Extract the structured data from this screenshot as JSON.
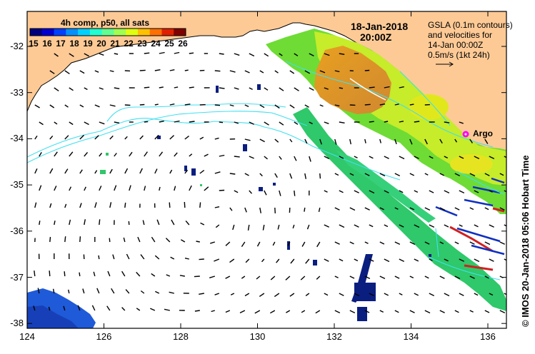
{
  "map": {
    "colorbar": {
      "title": "4h comp, p50, all sats",
      "ticks": [
        "15",
        "16",
        "17",
        "18",
        "19",
        "20",
        "21",
        "22",
        "23",
        "24",
        "25",
        "26"
      ],
      "colors": [
        "#00007f",
        "#0000d0",
        "#0040ff",
        "#0090ff",
        "#00d0ff",
        "#20ffd0",
        "#60ff90",
        "#a0ff50",
        "#e0ff10",
        "#ffc000",
        "#ff7000",
        "#e02000",
        "#800000"
      ]
    },
    "date": "18-Jan-2018",
    "time": "20:00Z",
    "legend": {
      "line1": "GSLA (0.1m contours)",
      "line2": "and velocities for",
      "line3": "14-Jan 00:00Z",
      "line4": "0.5m/s (1kt 24h)"
    },
    "argo_label": "Argo",
    "side_label": "©  IMOS 20-Jan-2018 05:06 Hobart Time",
    "y_ticks": [
      "-32",
      "-33",
      "-34",
      "-35",
      "-36",
      "-37",
      "-38"
    ],
    "x_ticks": [
      "124",
      "126",
      "128",
      "130",
      "132",
      "134",
      "136"
    ],
    "colors": {
      "land": "#fdca96",
      "ocean": "#ffffff",
      "contour": "#40e0f0",
      "argo": "#ff00ff"
    }
  }
}
